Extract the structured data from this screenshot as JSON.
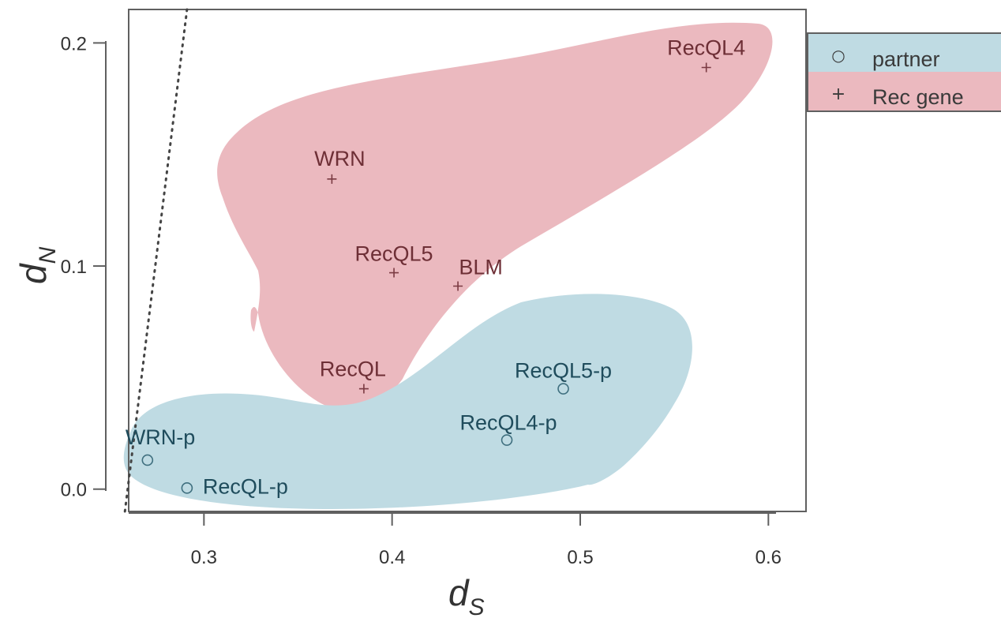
{
  "chart_data": {
    "type": "scatter",
    "xlabel": {
      "main": "d",
      "sub": "S"
    },
    "ylabel": {
      "main": "d",
      "sub": "N"
    },
    "xlim": [
      0.26,
      0.62
    ],
    "ylim": [
      -0.01,
      0.215
    ],
    "x_ticks": [
      {
        "value": 0.3,
        "label": "0.3"
      },
      {
        "value": 0.4,
        "label": "0.4"
      },
      {
        "value": 0.5,
        "label": "0.5"
      },
      {
        "value": 0.6,
        "label": "0.6"
      }
    ],
    "y_ticks": [
      {
        "value": 0.0,
        "label": "0.0"
      },
      {
        "value": 0.1,
        "label": "0.1"
      },
      {
        "value": 0.2,
        "label": "0.2"
      }
    ],
    "reference_line": {
      "style": "dotted",
      "points": [
        [
          0.258,
          -0.01
        ],
        [
          0.291,
          0.215
        ]
      ]
    },
    "legend": {
      "placement": "outside-top-right",
      "entries": [
        {
          "symbol": "○",
          "label": "partner",
          "color": "#bfdbe3"
        },
        {
          "symbol": "+",
          "label": "Rec gene",
          "color": "#ebb9bf"
        }
      ]
    },
    "series": [
      {
        "name": "partner",
        "marker": "circle",
        "region_color": "#bfdbe3",
        "text_color": "#1f4c5c",
        "points": [
          {
            "label": "WRN-p",
            "x": 0.27,
            "y": 0.013
          },
          {
            "label": "RecQL-p",
            "x": 0.291,
            "y": 0.0005
          },
          {
            "label": "RecQL4-p",
            "x": 0.461,
            "y": 0.022
          },
          {
            "label": "RecQL5-p",
            "x": 0.491,
            "y": 0.045
          }
        ]
      },
      {
        "name": "Rec gene",
        "marker": "plus",
        "region_color": "#ebb9bf",
        "text_color": "#6e2f36",
        "points": [
          {
            "label": "RecQL4",
            "x": 0.567,
            "y": 0.189
          },
          {
            "label": "WRN",
            "x": 0.368,
            "y": 0.139
          },
          {
            "label": "RecQL5",
            "x": 0.401,
            "y": 0.097
          },
          {
            "label": "BLM",
            "x": 0.435,
            "y": 0.091
          },
          {
            "label": "RecQL",
            "x": 0.385,
            "y": 0.045
          }
        ]
      }
    ]
  }
}
